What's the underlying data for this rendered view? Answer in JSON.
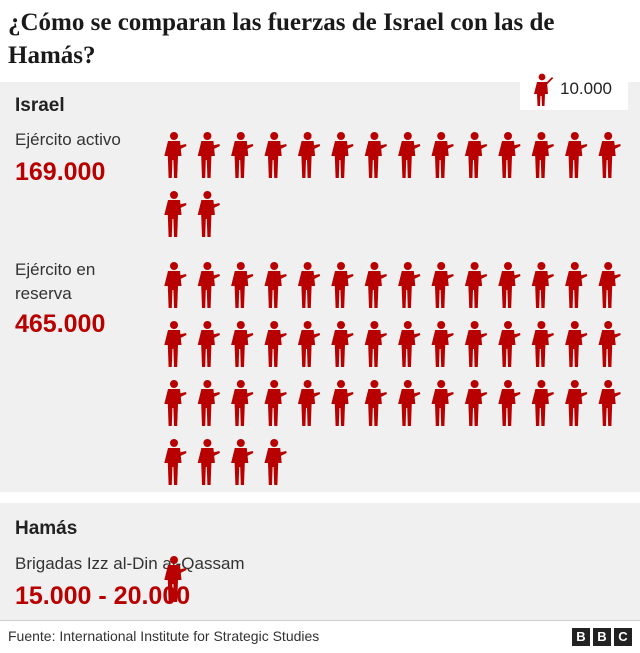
{
  "title": "¿Cómo se comparan las fuerzas de Israel con las de Hamás?",
  "legend": {
    "label": "10.000",
    "icon": "soldier-icon"
  },
  "colors": {
    "accent": "#b80000",
    "partial": "#9e9e9e",
    "panel": "#f0f0f0"
  },
  "chart_data": {
    "type": "pictograph",
    "unit_per_icon": 10000,
    "groups": [
      {
        "name": "Israel",
        "categories": [
          {
            "label": "Ejército activo",
            "value_text": "169.000",
            "value": 169000
          },
          {
            "label": "Ejército en reserva",
            "value_text": "465.000",
            "value": 465000
          }
        ]
      },
      {
        "name": "Hamás",
        "categories": [
          {
            "label": "Brigadas Izz al-Din al-Qassam",
            "value_text": "15.000 - 20.000",
            "value_min": 15000,
            "value_max": 20000
          }
        ]
      }
    ]
  },
  "source": "Fuente: International Institute for Strategic Studies",
  "brand": [
    "B",
    "B",
    "C"
  ]
}
